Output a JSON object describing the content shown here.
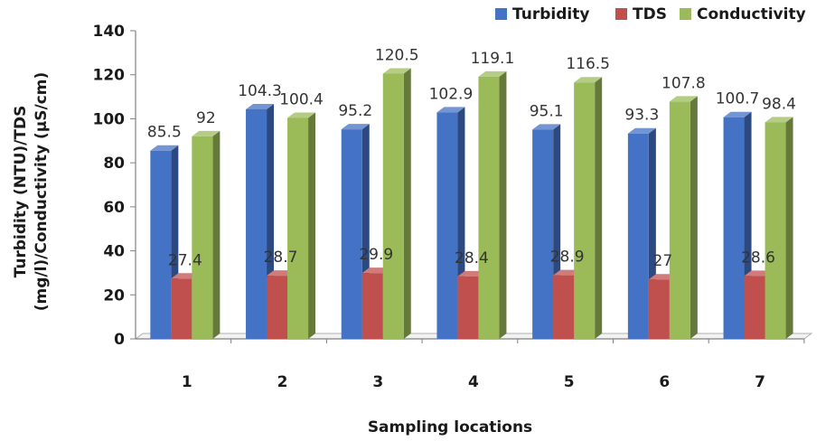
{
  "chart_data": {
    "type": "bar",
    "title": "",
    "xlabel": "Sampling locations",
    "ylabel_line1": "Turbidity (NTU)/TDS",
    "ylabel_line2": "(mg/l)/Conductivity (µS/cm)",
    "categories": [
      "1",
      "2",
      "3",
      "4",
      "5",
      "6",
      "7"
    ],
    "series": [
      {
        "name": "Turbidity",
        "color": "#4472C4",
        "values": [
          85.5,
          104.3,
          95.2,
          102.9,
          95.1,
          93.3,
          100.7
        ],
        "labels": [
          "85.5",
          "104.3",
          "95.2",
          "102.9",
          "95.1",
          "93.3",
          "100.7"
        ]
      },
      {
        "name": "TDS",
        "color": "#C0504D",
        "values": [
          27.4,
          28.7,
          29.9,
          28.4,
          28.9,
          27,
          28.6
        ],
        "labels": [
          "27.4",
          "28.7",
          "29.9",
          "28.4",
          "28.9",
          "27",
          "28.6"
        ]
      },
      {
        "name": "Conductivity",
        "color": "#9BBB59",
        "values": [
          92,
          100.4,
          120.5,
          119.1,
          116.5,
          107.8,
          98.4
        ],
        "labels": [
          "92",
          "100.4",
          "120.5",
          "119.1",
          "116.5",
          "107.8",
          "98.4"
        ]
      }
    ],
    "ylim": [
      0,
      140
    ],
    "yticks": [
      0,
      20,
      40,
      60,
      80,
      100,
      120,
      140
    ],
    "legend": "top-right",
    "grid": false,
    "style": "3d-clustered-column"
  }
}
